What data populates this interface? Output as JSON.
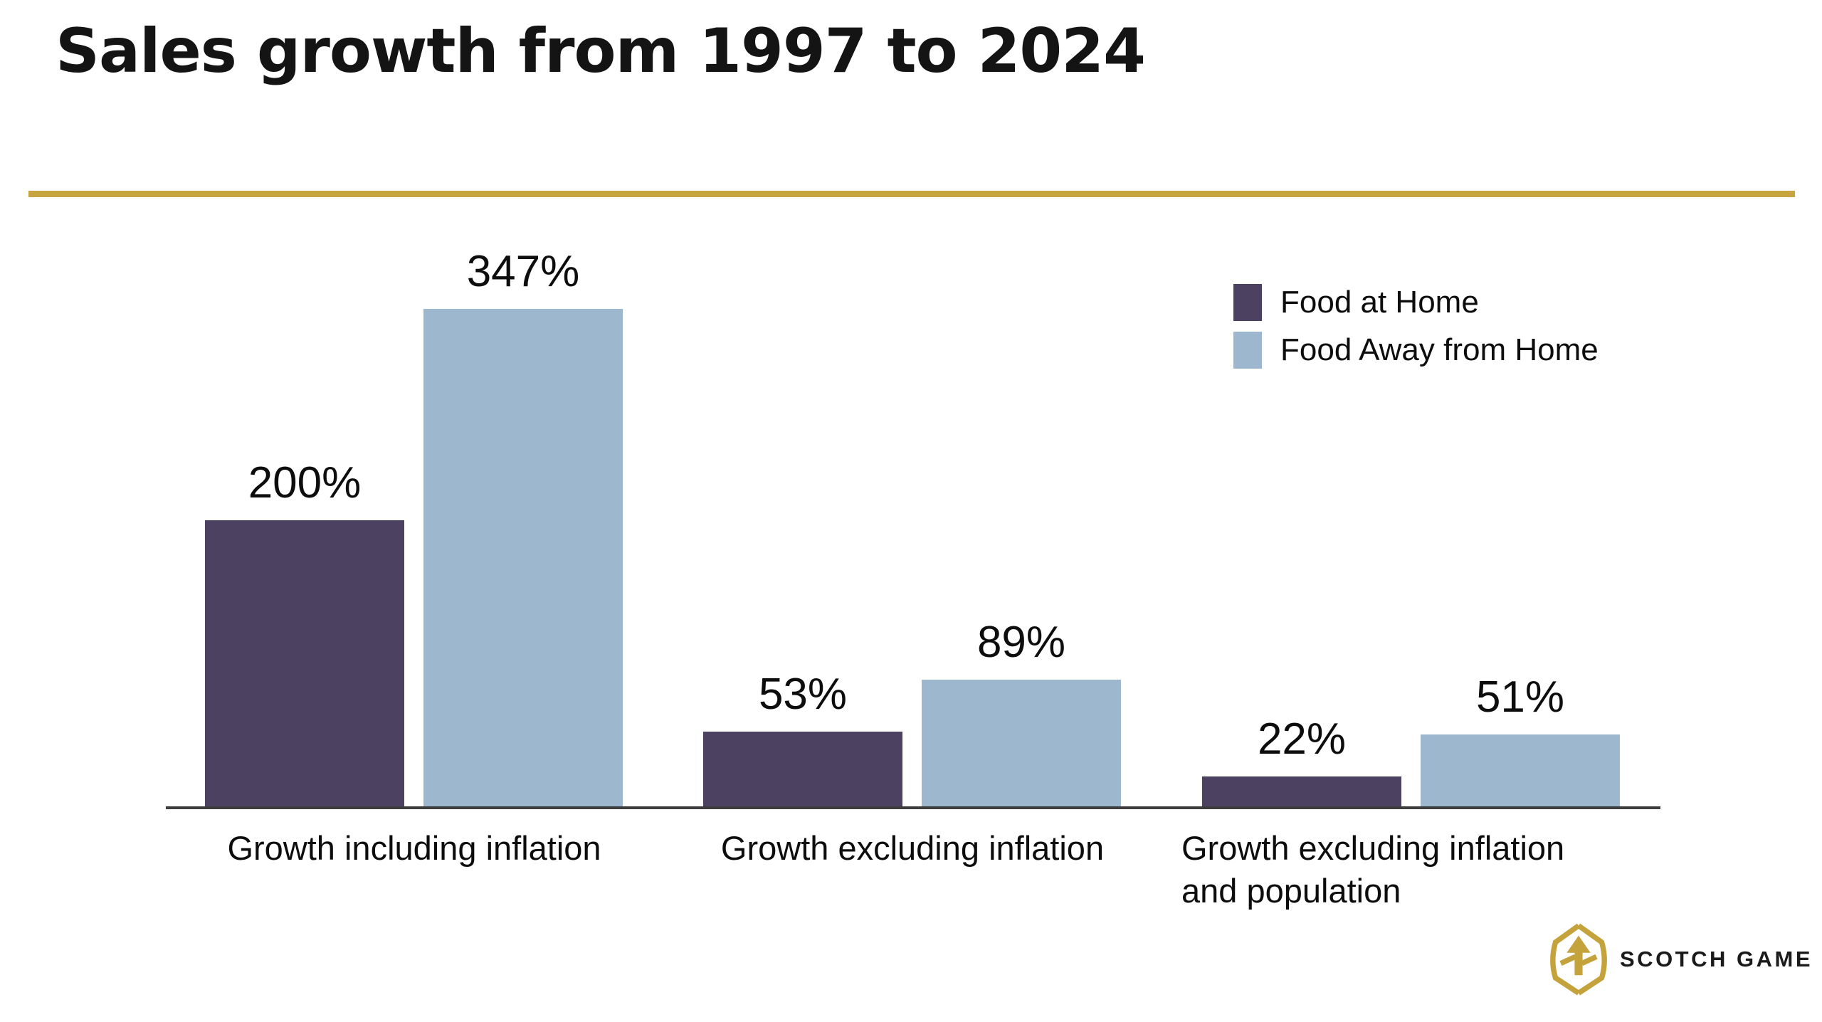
{
  "title": "Sales growth from 1997 to 2024",
  "colors": {
    "gold_accent": "#c8a43e",
    "food_at_home": "#4d4161",
    "food_away_from_home": "#9cb7ce",
    "axis": "#3d3d3d",
    "text": "#0d0d0d"
  },
  "legend": {
    "items": [
      {
        "label": "Food at Home",
        "color": "#4d4161"
      },
      {
        "label": "Food Away from Home",
        "color": "#9cb7ce"
      }
    ]
  },
  "chart_data": {
    "type": "bar",
    "title": "Sales growth from 1997 to 2024",
    "categories": [
      "Growth including inflation",
      "Growth excluding inflation",
      "Growth excluding inflation and population"
    ],
    "series": [
      {
        "name": "Food at Home",
        "color": "#4d4161",
        "values": [
          200,
          53,
          22
        ]
      },
      {
        "name": "Food Away from Home",
        "color": "#9cb7ce",
        "values": [
          347,
          89,
          51
        ]
      }
    ],
    "value_suffix": "%",
    "xlabel": "",
    "ylabel": "",
    "ylim": [
      0,
      360
    ],
    "grid": false,
    "axis_line": "bottom-only",
    "legend_position": "top-right",
    "data_labels": "above-bars"
  },
  "logo": {
    "text": "SCOTCH GAME"
  }
}
